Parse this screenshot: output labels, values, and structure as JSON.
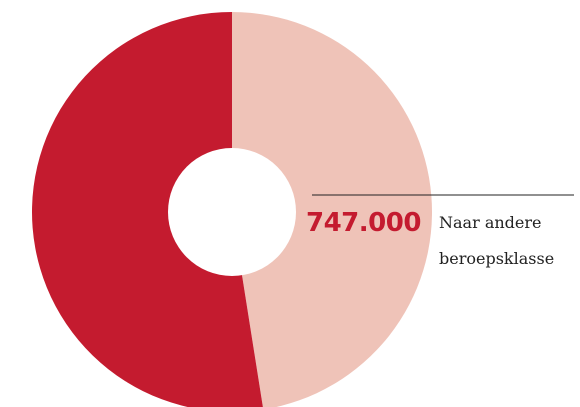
{
  "chart_data": {
    "type": "pie",
    "style": "donut",
    "slices": [
      {
        "value": 47.5,
        "color": "#efc3b8"
      },
      {
        "value": 52.5,
        "color": "#c41b2f"
      }
    ],
    "annotations": [
      {
        "value_label": "747.000",
        "value_color": "#c41b2f",
        "text_lines": [
          "Naar andere",
          "beroepsklasse"
        ]
      }
    ]
  }
}
